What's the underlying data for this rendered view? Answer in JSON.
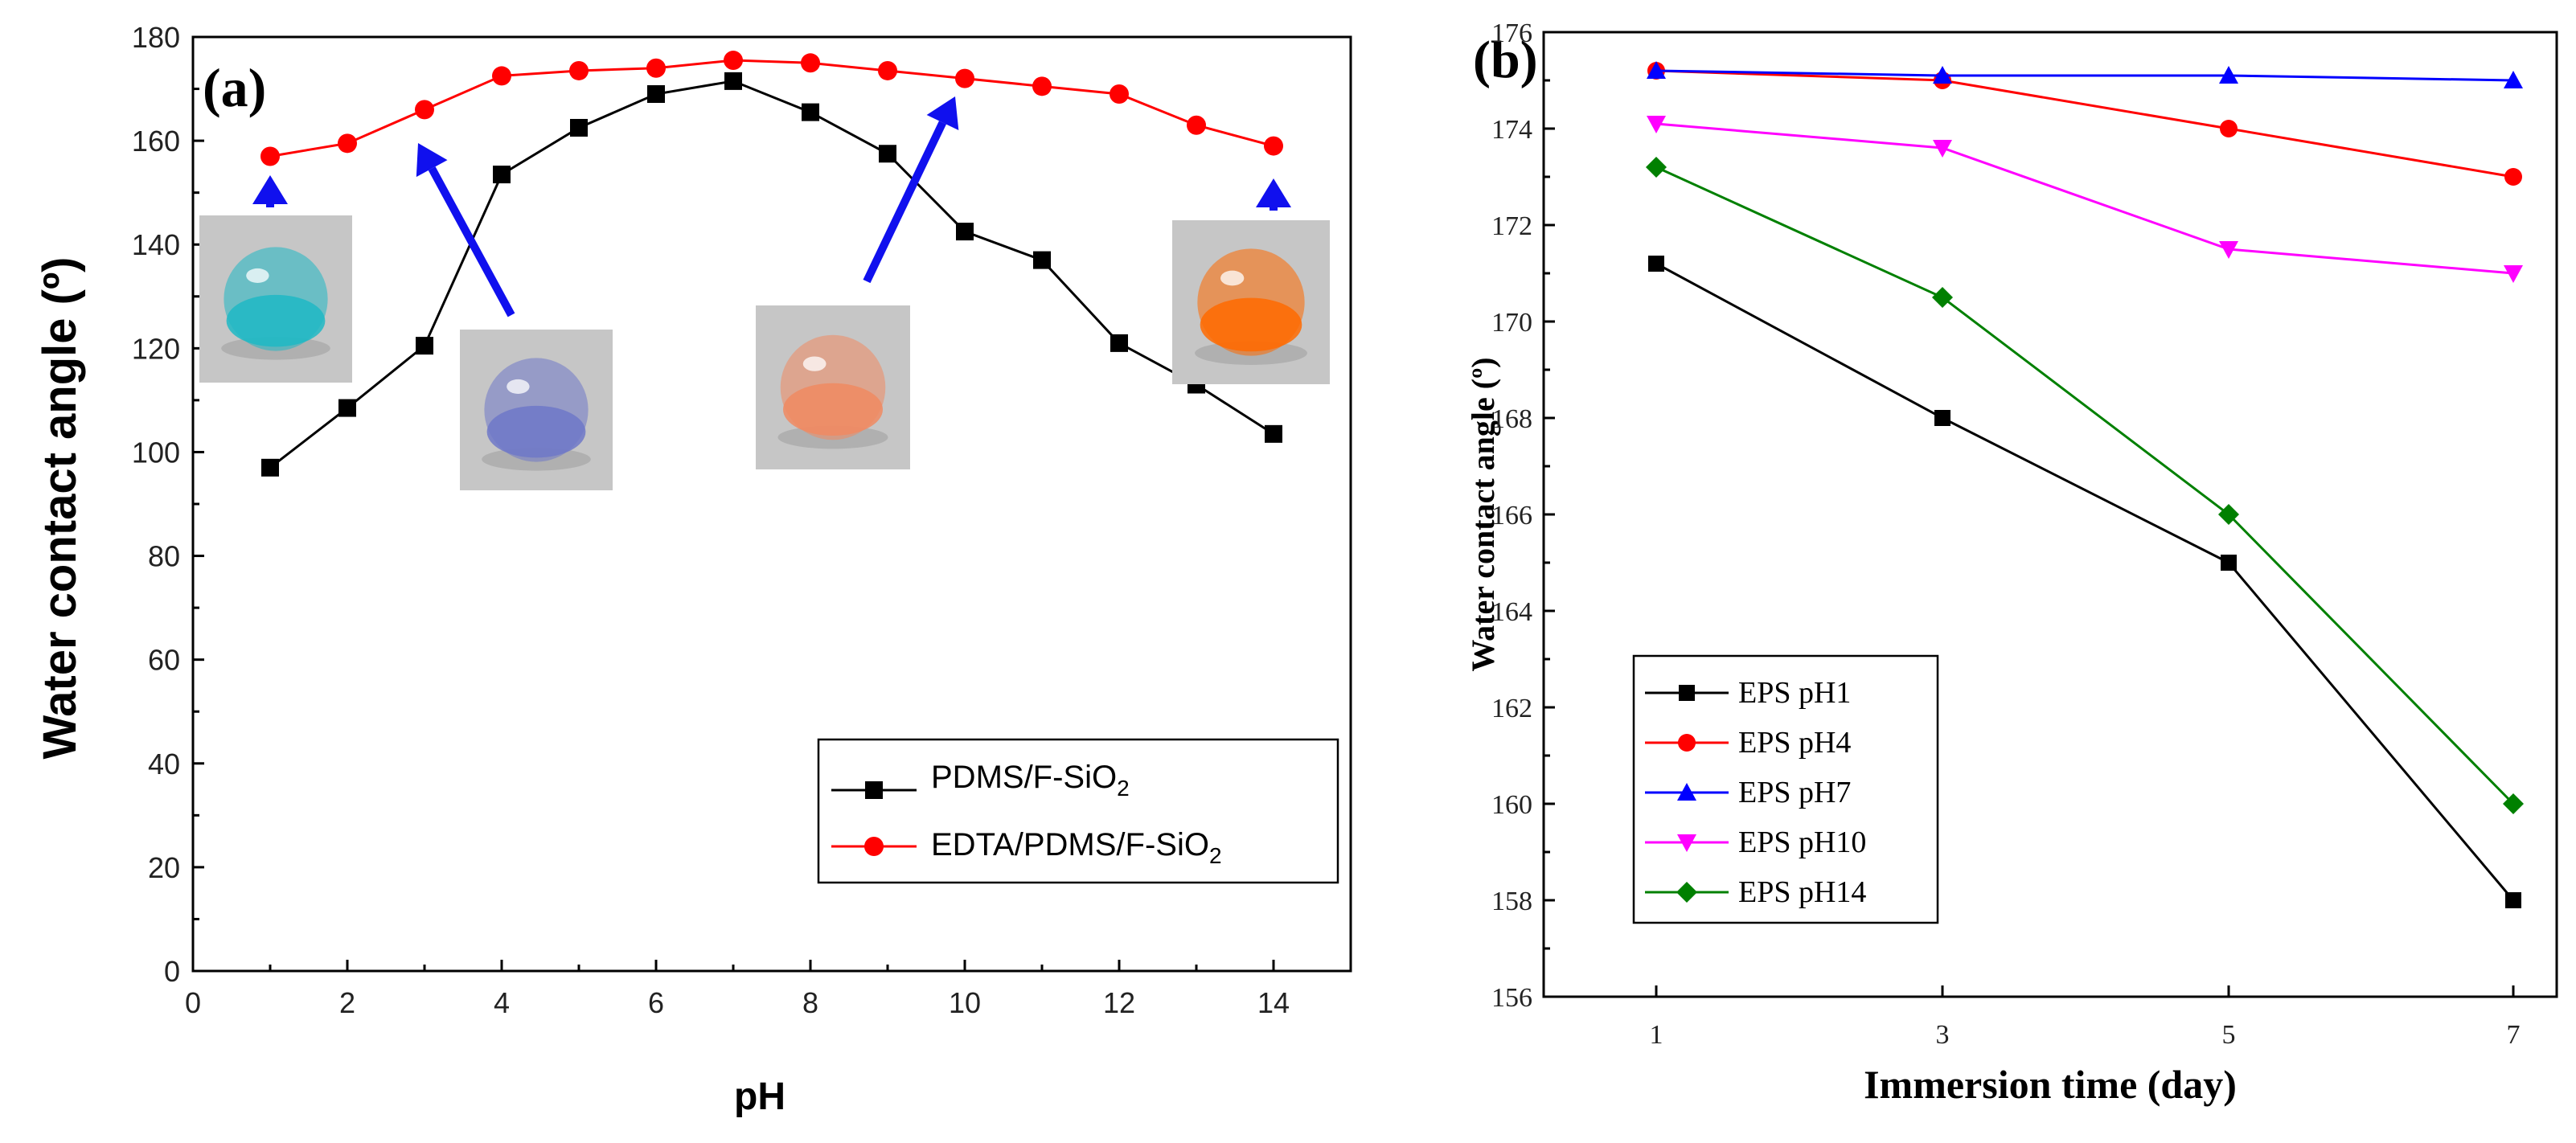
{
  "chart_data": [
    {
      "panel_label": "(a)",
      "type": "line",
      "xlabel": "pH",
      "ylabel": "Water contact angle (º)",
      "xlim": [
        0,
        15
      ],
      "ylim": [
        0,
        180
      ],
      "xticks": [
        0,
        2,
        4,
        6,
        8,
        10,
        12,
        14
      ],
      "yticks": [
        0,
        20,
        40,
        60,
        80,
        100,
        120,
        140,
        160,
        180
      ],
      "legend_position": "bottom-right",
      "grid": false,
      "series": [
        {
          "name": "PDMS/F-SiO2",
          "legend_main": "PDMS/F-SiO",
          "legend_sub": "2",
          "color": "#000000",
          "marker": "square",
          "x": [
            1,
            2,
            3,
            4,
            5,
            6,
            7,
            8,
            9,
            10,
            11,
            12,
            13,
            14
          ],
          "y": [
            97,
            108.5,
            120.5,
            153.5,
            162.5,
            169,
            171.5,
            165.5,
            157.5,
            142.5,
            137,
            121,
            113,
            103.5
          ]
        },
        {
          "name": "EDTA/PDMS/F-SiO2",
          "legend_main": "EDTA/PDMS/F-SiO",
          "legend_sub": "2",
          "color": "#ff0000",
          "marker": "circle",
          "x": [
            1,
            2,
            3,
            4,
            5,
            6,
            7,
            8,
            9,
            10,
            11,
            12,
            13,
            14
          ],
          "y": [
            157,
            159.5,
            166,
            172.5,
            173.5,
            174,
            175.5,
            175,
            173.5,
            172,
            170.5,
            169,
            163,
            159
          ]
        }
      ],
      "annotations": {
        "arrow_color": "#1010ee",
        "droplet_photos": [
          {
            "ph": 1,
            "color": "#1fb8c4"
          },
          {
            "ph": 3,
            "color": "#6f78c8"
          },
          {
            "ph": 10,
            "color": "#f08a62"
          },
          {
            "ph": 14,
            "color": "#ff6a00"
          }
        ]
      }
    },
    {
      "panel_label": "(b)",
      "type": "line",
      "xlabel": "Immersion time (day)",
      "ylabel": "Water contact angle (º)",
      "categories": [
        1,
        3,
        5,
        7
      ],
      "ylim": [
        156,
        176
      ],
      "yticks": [
        156,
        158,
        160,
        162,
        164,
        166,
        168,
        170,
        172,
        174,
        176
      ],
      "legend_position": "bottom-left",
      "grid": false,
      "series": [
        {
          "name": "EPS pH1",
          "color": "#000000",
          "marker": "square",
          "values": [
            171.2,
            168.0,
            165.0,
            158.0
          ]
        },
        {
          "name": "EPS pH4",
          "color": "#ff0000",
          "marker": "circle",
          "values": [
            175.2,
            175.0,
            174.0,
            173.0
          ]
        },
        {
          "name": "EPS pH7",
          "color": "#0000ff",
          "marker": "triangle-up",
          "values": [
            175.2,
            175.1,
            175.1,
            175.0
          ]
        },
        {
          "name": "EPS pH10",
          "color": "#ff00ff",
          "marker": "triangle-down",
          "values": [
            174.1,
            173.6,
            171.5,
            171.0
          ]
        },
        {
          "name": "EPS pH14",
          "color": "#008000",
          "marker": "diamond",
          "values": [
            173.2,
            170.5,
            166.0,
            160.0
          ]
        }
      ]
    }
  ]
}
